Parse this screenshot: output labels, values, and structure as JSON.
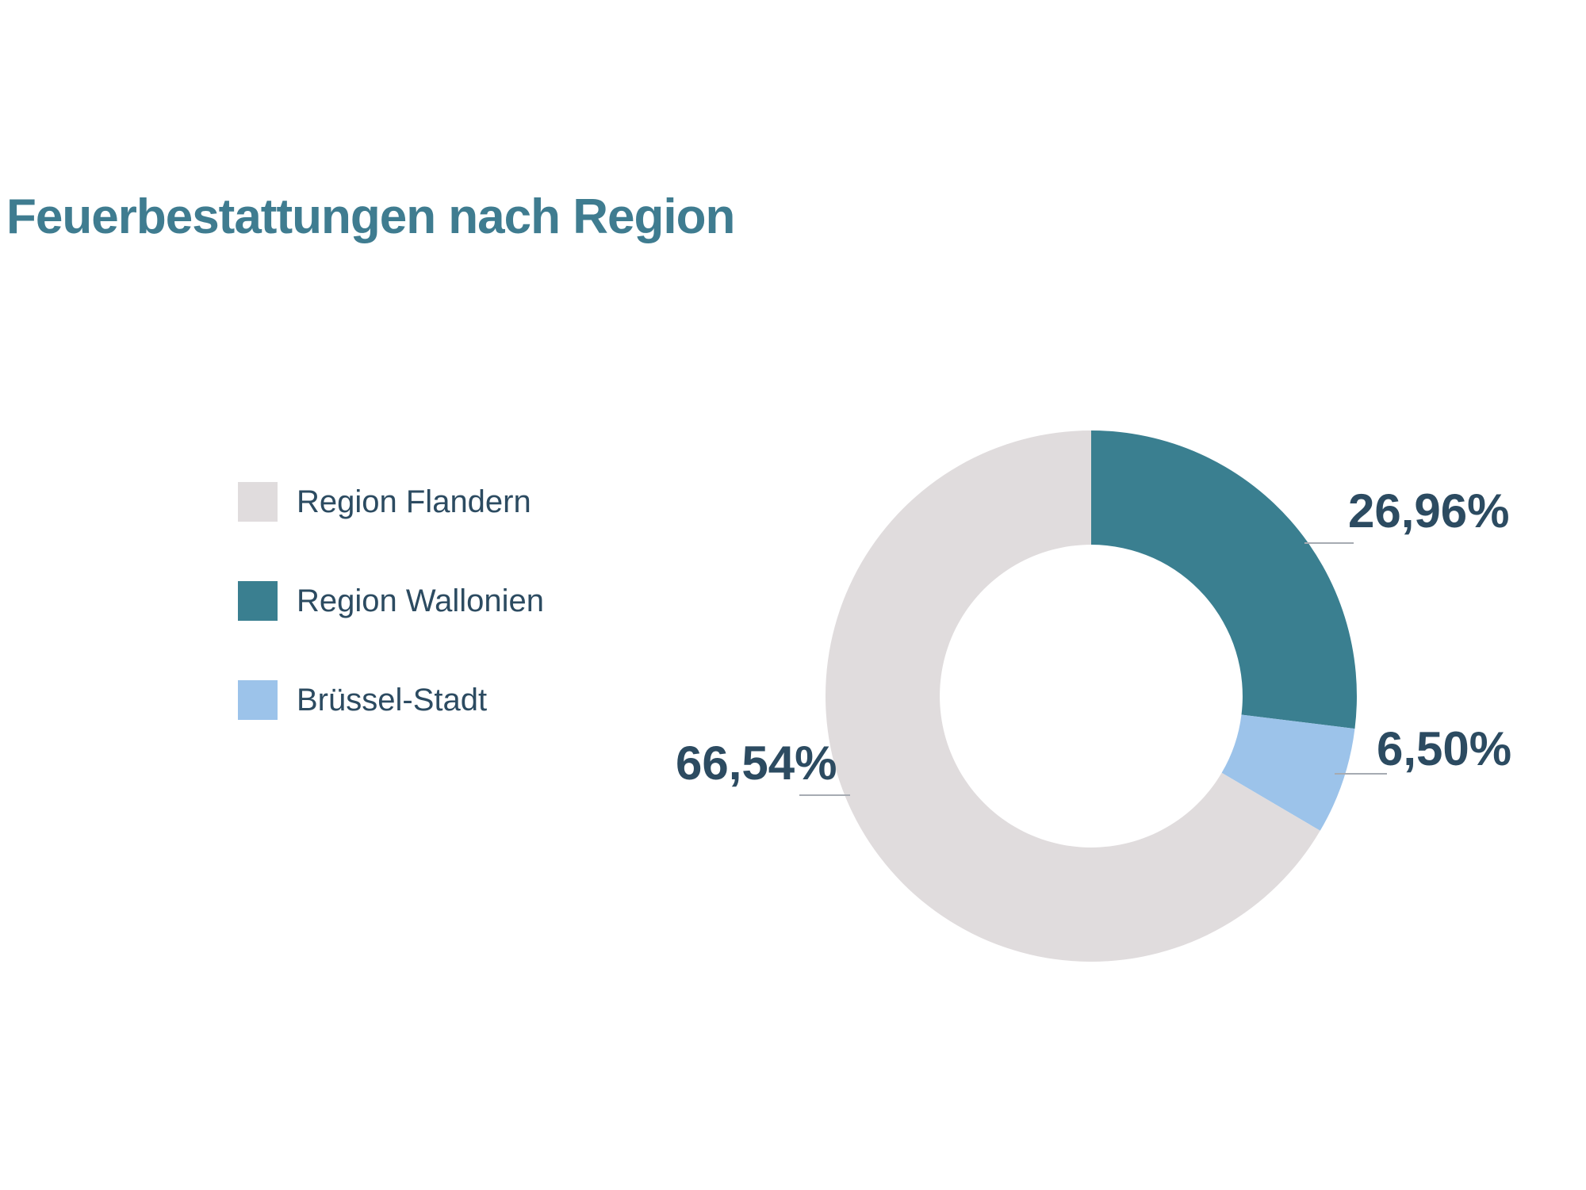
{
  "page": {
    "background_color": "#ffffff",
    "text_color_dark": "#2c4b61",
    "title_color": "#3f7c90",
    "leader_line_color": "#a6abb2"
  },
  "title": "Feuerbestattungen nach Region",
  "legend": {
    "position": "left",
    "items": [
      {
        "label": "Region Flandern",
        "color": "#e0dcdd"
      },
      {
        "label": "Region Wallonien",
        "color": "#3a7f90"
      },
      {
        "label": "Brüssel-Stadt",
        "color": "#9cc3ea"
      }
    ]
  },
  "chart_data": {
    "type": "pie",
    "subtype": "donut",
    "title": "Feuerbestattungen nach Region",
    "unit": "%",
    "start_angle_deg": 0,
    "direction": "clockwise",
    "inner_radius_ratio": 0.57,
    "legend_position": "left",
    "categories": [
      "Region Wallonien",
      "Brüssel-Stadt",
      "Region Flandern"
    ],
    "values": [
      26.96,
      6.5,
      66.54
    ],
    "segments": [
      {
        "name": "Region Wallonien",
        "value": 26.96,
        "formatted": "26,96%",
        "color": "#3a7f90"
      },
      {
        "name": "Brüssel-Stadt",
        "value": 6.5,
        "formatted": "6,50%",
        "color": "#9cc3ea"
      },
      {
        "name": "Region Flandern",
        "value": 66.54,
        "formatted": "66,54%",
        "color": "#e0dcdd"
      }
    ]
  }
}
